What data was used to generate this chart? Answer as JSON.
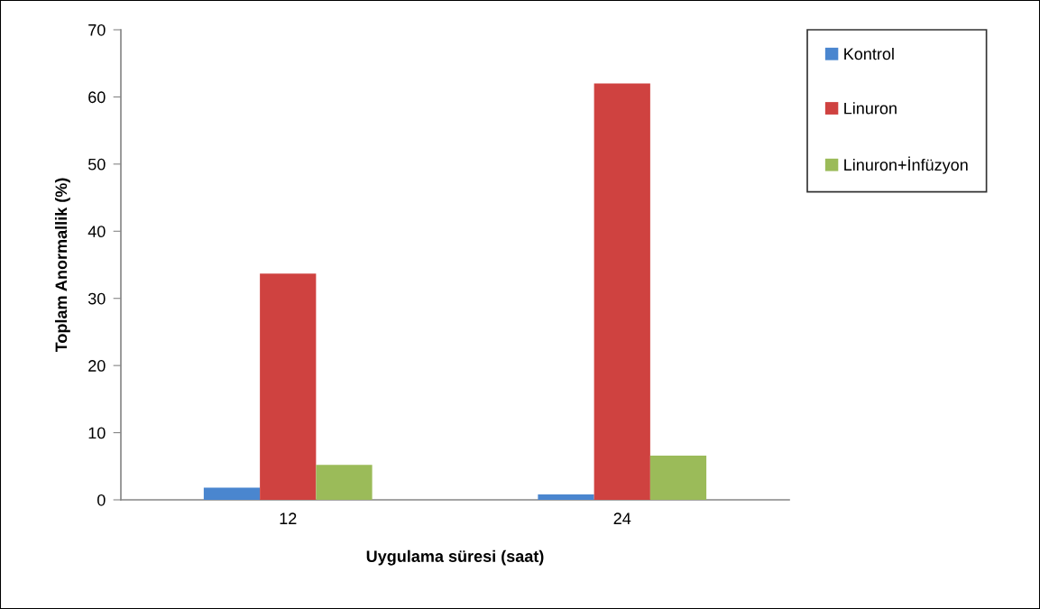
{
  "chart_data": {
    "type": "bar",
    "xlabel": "Uygulama süresi (saat)",
    "ylabel": "Toplam Anormallik (%)",
    "categories": [
      "12",
      "24"
    ],
    "series": [
      {
        "name": "Kontrol",
        "color": "#4a86cf",
        "values": [
          1.8,
          0.8
        ]
      },
      {
        "name": "Linuron",
        "color": "#cf4240",
        "values": [
          33.7,
          62.0
        ]
      },
      {
        "name": "Linuron+İnfüzyon",
        "color": "#9bbb59",
        "values": [
          5.2,
          6.6
        ]
      }
    ],
    "ylim": [
      0,
      70
    ],
    "yticks": [
      0,
      10,
      20,
      30,
      40,
      50,
      60,
      70
    ],
    "grid": false,
    "legend": "top right"
  }
}
